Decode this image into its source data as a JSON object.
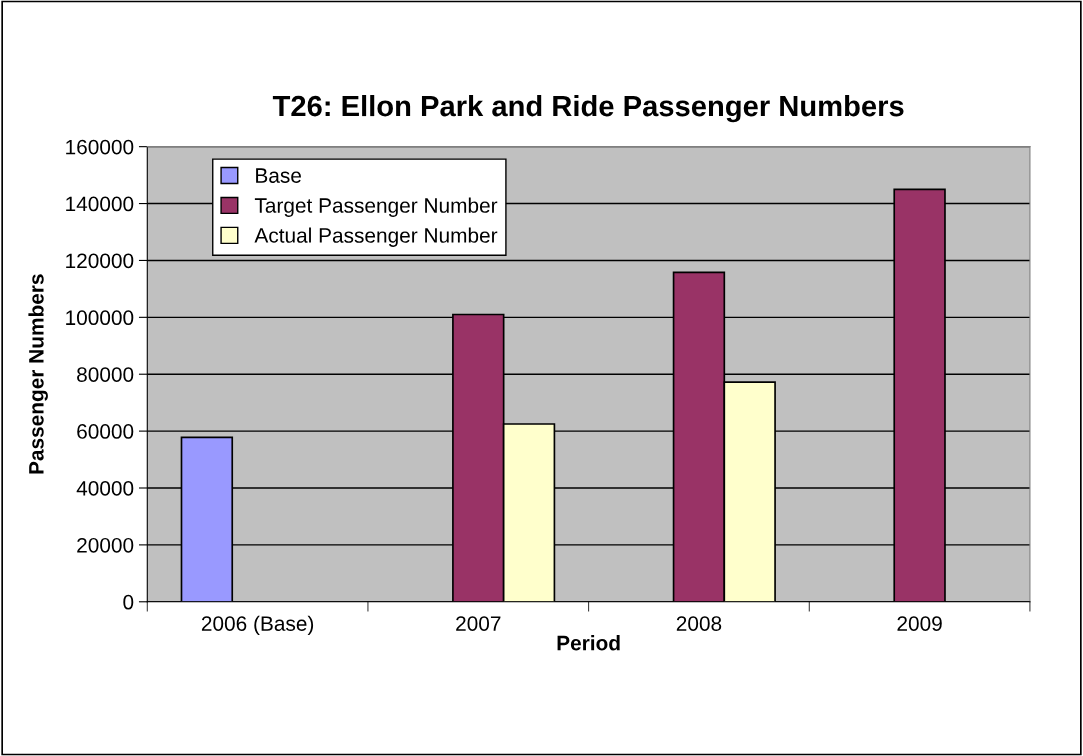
{
  "chart_data": {
    "type": "bar",
    "title": "T26: Ellon Park and Ride Passenger Numbers",
    "xlabel": "Period",
    "ylabel": "Passenger Numbers",
    "categories": [
      "2006 (Base)",
      "2007",
      "2008",
      "2009"
    ],
    "series": [
      {
        "name": "Base",
        "color": "#9999ff",
        "values": [
          57800,
          null,
          null,
          null
        ]
      },
      {
        "name": "Target Passenger Number",
        "color": "#993366",
        "values": [
          null,
          101000,
          115800,
          145000
        ]
      },
      {
        "name": "Actual Passenger Number",
        "color": "#ffffcc",
        "values": [
          null,
          62500,
          77200,
          null
        ]
      }
    ],
    "ylim": [
      0,
      160000
    ],
    "yticks": [
      0,
      20000,
      40000,
      60000,
      80000,
      100000,
      120000,
      140000,
      160000
    ],
    "grid": "y",
    "legend": "top left"
  }
}
